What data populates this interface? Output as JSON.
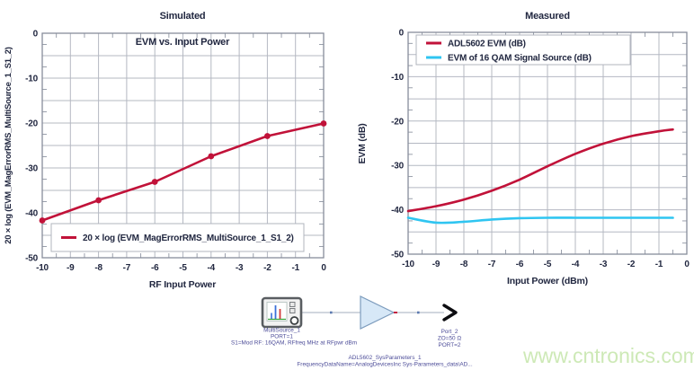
{
  "watermark": "www.cntronics.com",
  "chart_data": [
    {
      "type": "line",
      "title": "Simulated",
      "inner_title": "EVM vs. Input Power",
      "xlabel": "RF Input Power",
      "ylabel": "20 × log (EVM_MagErrorRMS_MultiSource_1_S1_2)",
      "xlim": [
        -10,
        0
      ],
      "ylim": [
        -50,
        0
      ],
      "x_ticks": [
        -10,
        -9,
        -8,
        -7,
        -6,
        -5,
        -4,
        -3,
        -2,
        -1,
        0
      ],
      "y_ticks": [
        0,
        -10,
        -20,
        -30,
        -40,
        -50
      ],
      "grid": {
        "x_step": 1,
        "y_step": 5,
        "on": true
      },
      "legend_position": "bottom-center",
      "series": [
        {
          "name": "20 × log (EVM_MagErrorRMS_MultiSource_1_S1_2)",
          "color": "#c11239",
          "marker": true,
          "smooth": false,
          "x": [
            -10,
            -8,
            -6,
            -4,
            -2,
            0
          ],
          "y": [
            -41.7,
            -37.2,
            -33.1,
            -27.4,
            -22.9,
            -20.1
          ]
        }
      ]
    },
    {
      "type": "line",
      "title": "Measured",
      "inner_title": "",
      "xlabel": "Input Power (dBm)",
      "ylabel": "EVM (dB)",
      "xlim": [
        -10,
        0
      ],
      "ylim": [
        -50,
        0
      ],
      "x_ticks": [
        -10,
        -9,
        -8,
        -7,
        -6,
        -5,
        -4,
        -3,
        -2,
        -1,
        0
      ],
      "y_ticks": [
        0,
        -10,
        -20,
        -30,
        -40,
        -50
      ],
      "grid": {
        "x_step": 1,
        "y_step": 5,
        "on": true
      },
      "legend_position": "top-left",
      "series": [
        {
          "name": "ADL5602 EVM (dB)",
          "color": "#c11239",
          "marker": false,
          "smooth": true,
          "x": [
            -10,
            -9,
            -8,
            -7,
            -6,
            -5,
            -4,
            -3,
            -2,
            -1,
            -0.5
          ],
          "y": [
            -40.3,
            -39.2,
            -37.7,
            -35.7,
            -33.2,
            -30.2,
            -27.4,
            -25.1,
            -23.4,
            -22.3,
            -21.9
          ]
        },
        {
          "name": "EVM of 16 QAM Signal Source (dB)",
          "color": "#2fc5f1",
          "marker": false,
          "smooth": true,
          "x": [
            -10,
            -9,
            -8,
            -7,
            -6,
            -5,
            -4,
            -3,
            -2,
            -1,
            -0.5
          ],
          "y": [
            -41.8,
            -42.9,
            -42.7,
            -42.2,
            -41.9,
            -41.8,
            -41.8,
            -41.8,
            -41.8,
            -41.8,
            -41.8
          ]
        }
      ]
    }
  ],
  "schematic": {
    "source": {
      "name": "MultiSource_1",
      "port": "PORT=1",
      "params": "S1=Mod RF: 16QAM, RFfreq MHz at RFpwr dBm"
    },
    "amplifier": {
      "name": "ADL5602_SysParameters_1",
      "params": "FrequencyDataName=AnalogDevicesInc Sys-Parameters_data\\AD..."
    },
    "output_port": {
      "name": "Port_2",
      "impedance": "ZO=50 Ω",
      "port": "PORT=2"
    }
  }
}
